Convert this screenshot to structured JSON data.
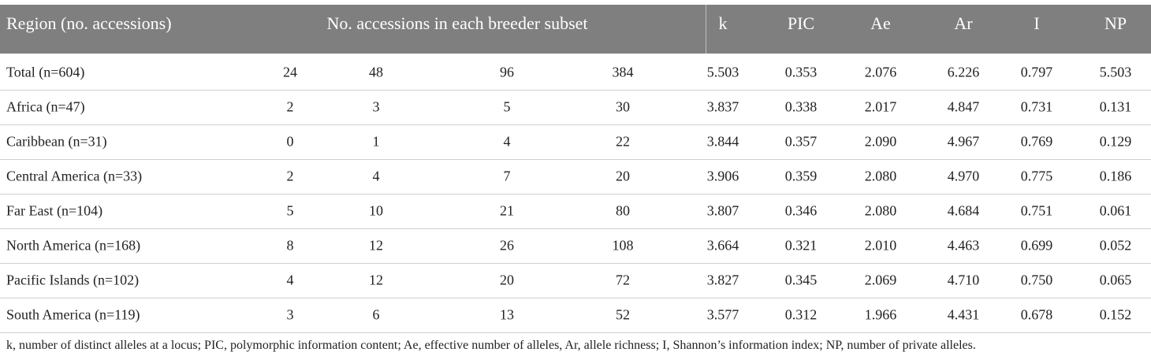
{
  "header": [
    "Region (no. accessions)",
    "No. accessions in each breeder subset",
    "k",
    "PIC",
    "Ae",
    "Ar",
    "I",
    "NP"
  ],
  "table": {
    "rows": [
      [
        "Total (n=604)",
        "24",
        "48",
        "96",
        "384",
        "5.503",
        "0.353",
        "2.076",
        "6.226",
        "0.797",
        "5.503"
      ],
      [
        "Africa (n=47)",
        "2",
        "3",
        "5",
        "30",
        "3.837",
        "0.338",
        "2.017",
        "4.847",
        "0.731",
        "0.131"
      ],
      [
        "Caribbean (n=31)",
        "0",
        "1",
        "4",
        "22",
        "3.844",
        "0.357",
        "2.090",
        "4.967",
        "0.769",
        "0.129"
      ],
      [
        "Central America (n=33)",
        "2",
        "4",
        "7",
        "20",
        "3.906",
        "0.359",
        "2.080",
        "4.970",
        "0.775",
        "0.186"
      ],
      [
        "Far East (n=104)",
        "5",
        "10",
        "21",
        "80",
        "3.807",
        "0.346",
        "2.080",
        "4.684",
        "0.751",
        "0.061"
      ],
      [
        "North America (n=168)",
        "8",
        "12",
        "26",
        "108",
        "3.664",
        "0.321",
        "2.010",
        "4.463",
        "0.699",
        "0.052"
      ],
      [
        "Pacific Islands (n=102)",
        "4",
        "12",
        "20",
        "72",
        "3.827",
        "0.345",
        "2.069",
        "4.710",
        "0.750",
        "0.065"
      ],
      [
        "South America (n=119)",
        "3",
        "6",
        "13",
        "52",
        "3.577",
        "0.312",
        "1.966",
        "4.431",
        "0.678",
        "0.152"
      ]
    ]
  },
  "footnote": "k, number of distinct alleles at a locus; PIC, polymorphic information content; Ae, effective number of alleles, Ar, allele richness; I, Shannon’s information index; NP, number of private alleles."
}
